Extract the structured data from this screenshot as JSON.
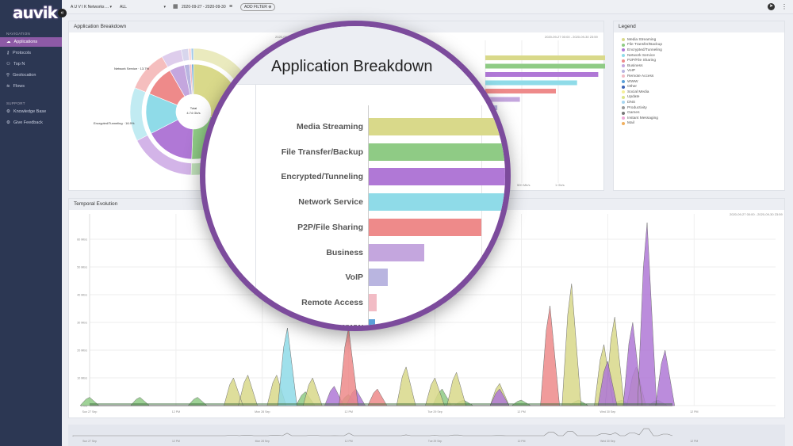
{
  "app": {
    "logo": "auvik"
  },
  "sidebar": {
    "navigation_label": "NAVIGATION",
    "nav_items": [
      {
        "label": "Applications",
        "icon": "cloud-icon",
        "active": true
      },
      {
        "label": "Protocols",
        "icon": "key-icon"
      },
      {
        "label": "Top N",
        "icon": "users-icon"
      },
      {
        "label": "Geolocation",
        "icon": "pin-icon"
      },
      {
        "label": "Flows",
        "icon": "flows-icon"
      }
    ],
    "support_label": "SUPPORT",
    "support_items": [
      {
        "label": "Knowledge Base",
        "icon": "gear-icon"
      },
      {
        "label": "Give Feedback",
        "icon": "gear-icon"
      }
    ]
  },
  "topbar": {
    "tenant": "A U V I K Networks ...",
    "scope": "ALL",
    "date_range": "2020-09-27 - 2020-09-30",
    "add_filter": "ADD FILTER"
  },
  "app_breakdown": {
    "title": "Application Breakdown",
    "donut_center": [
      "Total",
      "4.74 Gb/s"
    ],
    "donut_labels": [
      "Network Service · 13.7%",
      "Encrypted/Tunneling · 16.9%"
    ],
    "axis_ticks": [
      "500 Mb/s",
      "1 Gb/s"
    ],
    "range_note": "2020-09-27 00:00 - 2020-09-30 23:59"
  },
  "legend": {
    "title": "Legend",
    "items": [
      {
        "label": "Media Streaming",
        "color": "#d9d98a"
      },
      {
        "label": "File Transfer/Backup",
        "color": "#8fcb85"
      },
      {
        "label": "Encrypted/Tunneling",
        "color": "#b078d6"
      },
      {
        "label": "Network Service",
        "color": "#8fdbe8"
      },
      {
        "label": "P2P/File Sharing",
        "color": "#ee8a8a"
      },
      {
        "label": "Business",
        "color": "#c4a6de"
      },
      {
        "label": "VoIP",
        "color": "#b9b5e0"
      },
      {
        "label": "Remote Access",
        "color": "#f2bcc5"
      },
      {
        "label": "WWW",
        "color": "#5a9fd8"
      },
      {
        "label": "Other",
        "color": "#3d63b5"
      },
      {
        "label": "Social Media",
        "color": "#f5ef9a"
      },
      {
        "label": "Update",
        "color": "#dbe58a"
      },
      {
        "label": "DNS",
        "color": "#a8d6f0"
      },
      {
        "label": "Productivity",
        "color": "#999999"
      },
      {
        "label": "Games",
        "color": "#777777"
      },
      {
        "label": "Instant Messaging",
        "color": "#f0a8d8"
      },
      {
        "label": "Mail",
        "color": "#f0b060"
      }
    ]
  },
  "temporal": {
    "title": "Temporal Evolution"
  },
  "chart_data": [
    {
      "type": "bar",
      "title": "Application Breakdown",
      "orientation": "horizontal",
      "categories": [
        "Media Streaming",
        "File Transfer/Backup",
        "Encrypted/Tunneling",
        "Network Service",
        "P2P/File Sharing",
        "Business",
        "VoIP",
        "Remote Access",
        "WWW"
      ],
      "values": [
        1400,
        1000,
        800,
        650,
        500,
        245,
        85,
        35,
        28
      ],
      "unit": "Mb/s",
      "colors": [
        "#d9d98a",
        "#8fcb85",
        "#b078d6",
        "#8fdbe8",
        "#ee8a8a",
        "#c4a6de",
        "#b9b5e0",
        "#f2bcc5",
        "#5a9fd8"
      ],
      "xticks": [
        "500 Mb/s",
        "1 Gb/s"
      ]
    },
    {
      "type": "area",
      "title": "Temporal Evolution",
      "xlim": [
        "2020-09-27 00:00",
        "2020-09-30 12:00"
      ],
      "ylim": [
        0,
        60
      ],
      "unit": "Mb/s",
      "yticks": [
        "0 b/s",
        "10 Mb/s",
        "20 Mb/s",
        "30 Mb/s",
        "40 Mb/s",
        "50 Mb/s",
        "60 Mb/s"
      ],
      "xticks": [
        "Sun 27 Sep",
        "12 PM",
        "Mon 28 Sep",
        "12 PM",
        "Tue 29 Sep",
        "12 PM",
        "Wed 30 Sep",
        "12 PM"
      ],
      "series": [
        {
          "name": "File Transfer/Backup",
          "color": "#8fcb85",
          "points": [
            [
              "2020-09-27 00:00",
              3
            ],
            [
              "2020-09-27 07:00",
              3
            ],
            [
              "2020-09-27 15:00",
              3
            ],
            [
              "2020-09-28 06:00",
              5
            ],
            [
              "2020-09-28 12:00",
              4
            ],
            [
              "2020-09-29 01:00",
              6
            ],
            [
              "2020-09-29 04:00",
              2
            ],
            [
              "2020-09-29 12:00",
              2
            ],
            [
              "2020-09-29 20:00",
              2
            ],
            [
              "2020-09-30 02:00",
              2
            ],
            [
              "2020-09-30 07:00",
              2
            ]
          ]
        },
        {
          "name": "Media Streaming",
          "color": "#d9d98a",
          "points": [
            [
              "2020-09-27 20:00",
              10
            ],
            [
              "2020-09-27 22:00",
              11
            ],
            [
              "2020-09-28 02:00",
              11
            ],
            [
              "2020-09-28 07:00",
              10
            ],
            [
              "2020-09-28 20:00",
              14
            ],
            [
              "2020-09-29 00:00",
              10
            ],
            [
              "2020-09-29 03:00",
              12
            ],
            [
              "2020-09-29 09:00",
              8
            ],
            [
              "2020-09-29 19:00",
              44
            ],
            [
              "2020-09-29 23:30",
              22
            ],
            [
              "2020-09-30 01:00",
              32
            ],
            [
              "2020-09-30 04:00",
              14
            ]
          ]
        },
        {
          "name": "Encrypted/Tunneling",
          "color": "#b078d6",
          "points": [
            [
              "2020-09-28 10:00",
              7
            ],
            [
              "2020-09-28 13:00",
              6
            ],
            [
              "2020-09-29 09:00",
              6
            ],
            [
              "2020-09-30 00:00",
              16
            ],
            [
              "2020-09-30 03:30",
              30
            ],
            [
              "2020-09-30 05:30",
              66
            ],
            [
              "2020-09-30 08:00",
              20
            ]
          ]
        },
        {
          "name": "P2P/File Sharing",
          "color": "#ee8a8a",
          "points": [
            [
              "2020-09-28 12:00",
              28
            ],
            [
              "2020-09-28 16:00",
              6
            ],
            [
              "2020-09-29 16:00",
              36
            ]
          ]
        },
        {
          "name": "Network Service",
          "color": "#8fdbe8",
          "points": [
            [
              "2020-09-28 03:30",
              28
            ]
          ]
        }
      ]
    }
  ]
}
